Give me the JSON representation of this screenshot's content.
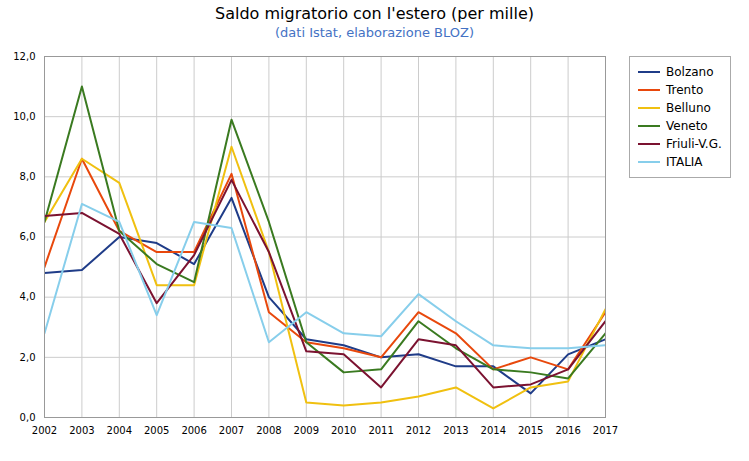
{
  "chart_data": {
    "type": "line",
    "title": "Saldo migratorio con l'estero (per mille)",
    "subtitle": "(dati Istat, elaborazione BLOZ)",
    "x": [
      2002,
      2003,
      2004,
      2005,
      2006,
      2007,
      2008,
      2009,
      2010,
      2011,
      2012,
      2013,
      2014,
      2015,
      2016,
      2017
    ],
    "xlim": [
      2002,
      2017
    ],
    "xticks": [
      2002,
      2003,
      2004,
      2005,
      2006,
      2007,
      2008,
      2009,
      2010,
      2011,
      2012,
      2013,
      2014,
      2015,
      2016,
      2017
    ],
    "ylim": [
      0,
      12
    ],
    "yticks": [
      {
        "value": 0,
        "label": "0,0"
      },
      {
        "value": 2,
        "label": "2,0"
      },
      {
        "value": 4,
        "label": "4,0"
      },
      {
        "value": 6,
        "label": "6,0"
      },
      {
        "value": 8,
        "label": "8,0"
      },
      {
        "value": 10,
        "label": "10,0"
      },
      {
        "value": 12,
        "label": "12,0"
      }
    ],
    "grid": true,
    "legend": "right",
    "series": [
      {
        "name": "Bolzano",
        "color": "#1f3c88",
        "values": [
          4.8,
          4.9,
          6.0,
          5.8,
          5.1,
          7.3,
          4.0,
          2.6,
          2.4,
          2.0,
          2.1,
          1.7,
          1.7,
          0.8,
          2.1,
          2.6
        ]
      },
      {
        "name": "Trento",
        "color": "#e8480c",
        "values": [
          5.0,
          8.6,
          6.2,
          5.5,
          5.5,
          8.1,
          3.5,
          2.5,
          2.3,
          2.0,
          3.5,
          2.8,
          1.6,
          2.0,
          1.6,
          3.5
        ]
      },
      {
        "name": "Belluno",
        "color": "#f0c010",
        "values": [
          6.5,
          8.6,
          7.8,
          4.4,
          4.4,
          9.0,
          5.5,
          0.5,
          0.4,
          0.5,
          0.7,
          1.0,
          0.3,
          1.0,
          1.2,
          3.6
        ]
      },
      {
        "name": "Veneto",
        "color": "#3a7a20",
        "values": [
          6.5,
          11.0,
          6.2,
          5.1,
          4.5,
          9.9,
          6.5,
          2.5,
          1.5,
          1.6,
          3.2,
          2.3,
          1.6,
          1.5,
          1.3,
          2.8
        ]
      },
      {
        "name": "Friuli-V.G.",
        "color": "#7b1230",
        "values": [
          6.7,
          6.8,
          6.1,
          3.8,
          5.4,
          7.9,
          5.5,
          2.2,
          2.1,
          1.0,
          2.6,
          2.4,
          1.0,
          1.1,
          1.6,
          3.2
        ]
      },
      {
        "name": "ITALIA",
        "color": "#87ceeb",
        "values": [
          2.8,
          7.1,
          6.5,
          3.4,
          6.5,
          6.3,
          2.5,
          3.5,
          2.8,
          2.7,
          4.1,
          3.2,
          2.4,
          2.3,
          2.3,
          2.4
        ]
      }
    ]
  }
}
